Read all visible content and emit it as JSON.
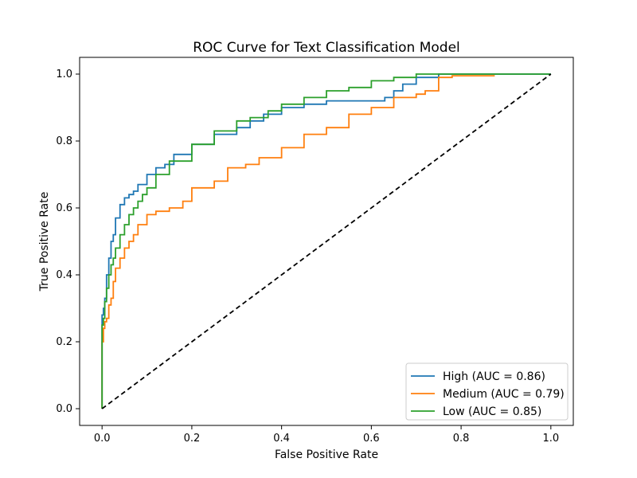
{
  "chart_data": {
    "type": "line",
    "title": "ROC Curve for Text Classification Model",
    "xlabel": "False Positive Rate",
    "ylabel": "True Positive Rate",
    "xlim": [
      -0.05,
      1.05
    ],
    "ylim": [
      -0.05,
      1.05
    ],
    "x_ticks": [
      0.0,
      0.2,
      0.4,
      0.6,
      0.8,
      1.0
    ],
    "y_ticks": [
      0.0,
      0.2,
      0.4,
      0.6,
      0.8,
      1.0
    ],
    "x_tick_labels": [
      "0.0",
      "0.2",
      "0.4",
      "0.6",
      "0.8",
      "1.0"
    ],
    "y_tick_labels": [
      "0.0",
      "0.2",
      "0.4",
      "0.6",
      "0.8",
      "1.0"
    ],
    "grid": false,
    "legend_position": "lower-right",
    "series": [
      {
        "name": "High (AUC = 0.86)",
        "color": "#1f77b4",
        "x": [
          0.0,
          0.0,
          0.003,
          0.006,
          0.01,
          0.015,
          0.02,
          0.025,
          0.03,
          0.04,
          0.05,
          0.06,
          0.07,
          0.08,
          0.1,
          0.12,
          0.14,
          0.16,
          0.2,
          0.25,
          0.3,
          0.33,
          0.36,
          0.4,
          0.45,
          0.5,
          0.55,
          0.6,
          0.63,
          0.65,
          0.67,
          0.7,
          0.75,
          0.78,
          0.85,
          1.0
        ],
        "y": [
          0.0,
          0.24,
          0.28,
          0.3,
          0.33,
          0.4,
          0.45,
          0.5,
          0.52,
          0.57,
          0.61,
          0.63,
          0.64,
          0.65,
          0.67,
          0.7,
          0.72,
          0.73,
          0.76,
          0.79,
          0.82,
          0.84,
          0.86,
          0.88,
          0.9,
          0.91,
          0.92,
          0.92,
          0.92,
          0.93,
          0.95,
          0.97,
          0.99,
          1.0,
          1.0,
          1.0
        ]
      },
      {
        "name": "Medium (AUC = 0.79)",
        "color": "#ff7f0e",
        "x": [
          0.0,
          0.0,
          0.003,
          0.006,
          0.01,
          0.015,
          0.02,
          0.025,
          0.03,
          0.04,
          0.05,
          0.06,
          0.07,
          0.08,
          0.1,
          0.12,
          0.15,
          0.18,
          0.2,
          0.25,
          0.28,
          0.32,
          0.35,
          0.4,
          0.45,
          0.5,
          0.55,
          0.6,
          0.65,
          0.7,
          0.72,
          0.75,
          0.78,
          0.85,
          0.875
        ],
        "y": [
          0.0,
          0.15,
          0.2,
          0.24,
          0.26,
          0.27,
          0.31,
          0.33,
          0.38,
          0.42,
          0.45,
          0.48,
          0.5,
          0.52,
          0.55,
          0.58,
          0.59,
          0.6,
          0.62,
          0.66,
          0.68,
          0.72,
          0.73,
          0.75,
          0.78,
          0.82,
          0.84,
          0.88,
          0.9,
          0.93,
          0.94,
          0.95,
          0.99,
          0.995,
          0.995
        ]
      },
      {
        "name": "Low (AUC = 0.85)",
        "color": "#2ca02c",
        "x": [
          0.0,
          0.0,
          0.003,
          0.006,
          0.01,
          0.015,
          0.02,
          0.025,
          0.03,
          0.04,
          0.05,
          0.06,
          0.07,
          0.08,
          0.09,
          0.1,
          0.12,
          0.15,
          0.2,
          0.25,
          0.3,
          0.33,
          0.37,
          0.4,
          0.45,
          0.5,
          0.55,
          0.6,
          0.65,
          0.7,
          0.75,
          0.8,
          1.0
        ],
        "y": [
          0.0,
          0.24,
          0.25,
          0.27,
          0.32,
          0.36,
          0.4,
          0.43,
          0.45,
          0.48,
          0.52,
          0.55,
          0.58,
          0.6,
          0.62,
          0.64,
          0.66,
          0.7,
          0.74,
          0.79,
          0.83,
          0.86,
          0.87,
          0.89,
          0.91,
          0.93,
          0.95,
          0.96,
          0.98,
          0.99,
          1.0,
          1.0,
          1.0
        ]
      }
    ],
    "reference_line": {
      "x": [
        0.0,
        1.0
      ],
      "y": [
        0.0,
        1.0
      ],
      "color": "#000000",
      "style": "dashed"
    }
  }
}
